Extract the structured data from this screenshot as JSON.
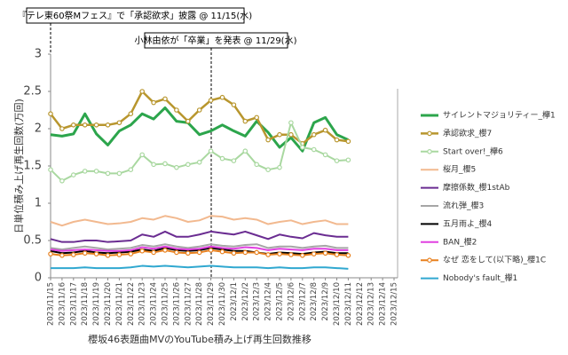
{
  "chart_data": {
    "type": "line",
    "title": "櫻坂46表題曲MVのYouTube積み上げ再生回数推移",
    "y_label": "日単位積み上げ再生回数(万回)",
    "annotations": [
      "『テレ東60祭Mフェス』で「承認欲求」披露 @ 11/15(水)",
      "小林由依が「卒業」を発表 @ 11/29(水)"
    ],
    "categories": [
      "2023/11/15",
      "2023/11/16",
      "2023/11/17",
      "2023/11/18",
      "2023/11/19",
      "2023/11/20",
      "2023/11/21",
      "2023/11/22",
      "2023/11/23",
      "2023/11/24",
      "2023/11/25",
      "2023/11/26",
      "2023/11/27",
      "2023/11/28",
      "2023/11/29",
      "2023/11/30",
      "2023/12/1",
      "2023/12/2",
      "2023/12/3",
      "2023/12/4",
      "2023/12/5",
      "2023/12/6",
      "2023/12/7",
      "2023/12/8",
      "2023/12/9",
      "2023/12/10",
      "2023/12/11",
      "2023/12/12",
      "2023/12/13",
      "2023/12/14",
      "2023/12/15"
    ],
    "ylim": [
      0,
      3
    ],
    "yticks": [
      0,
      0.5,
      1,
      1.5,
      2,
      2.5,
      3
    ],
    "series": [
      {
        "name": "サイレントマジョリティー_欅1",
        "color": "#2ca54c",
        "width": 3,
        "marker": false,
        "values": [
          1.92,
          1.9,
          1.93,
          2.2,
          1.93,
          1.78,
          1.97,
          2.05,
          2.2,
          2.13,
          2.28,
          2.1,
          2.08,
          1.92,
          1.97,
          2.05,
          1.97,
          1.9,
          2.1,
          1.95,
          1.75,
          1.88,
          1.7,
          2.08,
          2.15,
          1.92,
          1.85,
          null,
          null,
          null,
          null
        ]
      },
      {
        "name": "承認欲求_櫻7",
        "color": "#b8962e",
        "width": 2.5,
        "marker": true,
        "values": [
          2.2,
          2.0,
          2.05,
          2.05,
          2.05,
          2.05,
          2.08,
          2.2,
          2.5,
          2.35,
          2.4,
          2.25,
          2.1,
          2.25,
          2.38,
          2.42,
          2.32,
          2.1,
          2.15,
          1.85,
          1.92,
          1.92,
          1.8,
          1.92,
          1.98,
          1.85,
          1.83,
          null,
          null,
          null,
          null
        ]
      },
      {
        "name": "Start over!_欅6",
        "color": "#a9d8a0",
        "width": 2,
        "marker": true,
        "values": [
          1.45,
          1.3,
          1.38,
          1.43,
          1.43,
          1.4,
          1.4,
          1.45,
          1.65,
          1.52,
          1.53,
          1.48,
          1.52,
          1.55,
          1.7,
          1.6,
          1.57,
          1.7,
          1.52,
          1.45,
          1.48,
          2.08,
          1.75,
          1.72,
          1.65,
          1.57,
          1.58,
          null,
          null,
          null,
          null
        ]
      },
      {
        "name": "桜月_櫻5",
        "color": "#f2b98f",
        "width": 2,
        "marker": false,
        "values": [
          0.75,
          0.7,
          0.75,
          0.78,
          0.75,
          0.72,
          0.73,
          0.75,
          0.8,
          0.78,
          0.83,
          0.8,
          0.75,
          0.77,
          0.83,
          0.82,
          0.78,
          0.8,
          0.78,
          0.72,
          0.75,
          0.77,
          0.72,
          0.75,
          0.77,
          0.72,
          0.72,
          null,
          null,
          null,
          null
        ]
      },
      {
        "name": "摩擦係数_櫻1stAb",
        "color": "#6a2c91",
        "width": 2,
        "marker": false,
        "values": [
          0.52,
          0.48,
          0.48,
          0.5,
          0.5,
          0.48,
          0.49,
          0.5,
          0.58,
          0.55,
          0.62,
          0.55,
          0.55,
          0.58,
          0.62,
          0.6,
          0.58,
          0.62,
          0.57,
          0.52,
          0.58,
          0.55,
          0.53,
          0.6,
          0.57,
          0.55,
          0.55,
          null,
          null,
          null,
          null
        ]
      },
      {
        "name": "流れ弾_櫻3",
        "color": "#a6a6a6",
        "width": 2,
        "marker": false,
        "values": [
          0.4,
          0.38,
          0.4,
          0.42,
          0.4,
          0.38,
          0.39,
          0.4,
          0.44,
          0.42,
          0.45,
          0.42,
          0.4,
          0.42,
          0.45,
          0.43,
          0.42,
          0.44,
          0.45,
          0.4,
          0.42,
          0.42,
          0.4,
          0.42,
          0.43,
          0.4,
          0.4,
          null,
          null,
          null,
          null
        ]
      },
      {
        "name": "五月雨よ_櫻4",
        "color": "#000000",
        "width": 2,
        "marker": false,
        "values": [
          0.36,
          0.33,
          0.34,
          0.36,
          0.34,
          0.33,
          0.34,
          0.35,
          0.38,
          0.36,
          0.4,
          0.37,
          0.36,
          0.37,
          0.4,
          0.38,
          0.36,
          0.36,
          0.34,
          0.32,
          0.34,
          0.33,
          0.32,
          0.34,
          0.35,
          0.33,
          0.33,
          null,
          null,
          null,
          null
        ]
      },
      {
        "name": "BAN_櫻2",
        "color": "#e040e0",
        "width": 2,
        "marker": false,
        "values": [
          0.38,
          0.36,
          0.37,
          0.38,
          0.37,
          0.36,
          0.36,
          0.37,
          0.41,
          0.39,
          0.42,
          0.39,
          0.38,
          0.39,
          0.42,
          0.4,
          0.39,
          0.41,
          0.4,
          0.37,
          0.39,
          0.38,
          0.37,
          0.39,
          0.39,
          0.37,
          0.37,
          null,
          null,
          null,
          null
        ]
      },
      {
        "name": "なぜ 恋をして(以下略)_櫻1C",
        "color": "#e8801e",
        "width": 2,
        "marker": true,
        "values": [
          0.32,
          0.3,
          0.31,
          0.33,
          0.32,
          0.3,
          0.31,
          0.32,
          0.36,
          0.34,
          0.37,
          0.34,
          0.33,
          0.34,
          0.37,
          0.35,
          0.33,
          0.34,
          0.34,
          0.31,
          0.32,
          0.31,
          0.3,
          0.32,
          0.33,
          0.31,
          0.3,
          null,
          null,
          null,
          null
        ]
      },
      {
        "name": "Nobody's fault_欅1",
        "color": "#30a8d0",
        "width": 2,
        "marker": false,
        "values": [
          0.13,
          0.13,
          0.13,
          0.14,
          0.13,
          0.13,
          0.13,
          0.14,
          0.16,
          0.15,
          0.16,
          0.15,
          0.14,
          0.15,
          0.16,
          0.15,
          0.14,
          0.14,
          0.14,
          0.13,
          0.14,
          0.13,
          0.13,
          0.14,
          0.14,
          0.13,
          0.12,
          null,
          null,
          null,
          null
        ]
      }
    ]
  }
}
